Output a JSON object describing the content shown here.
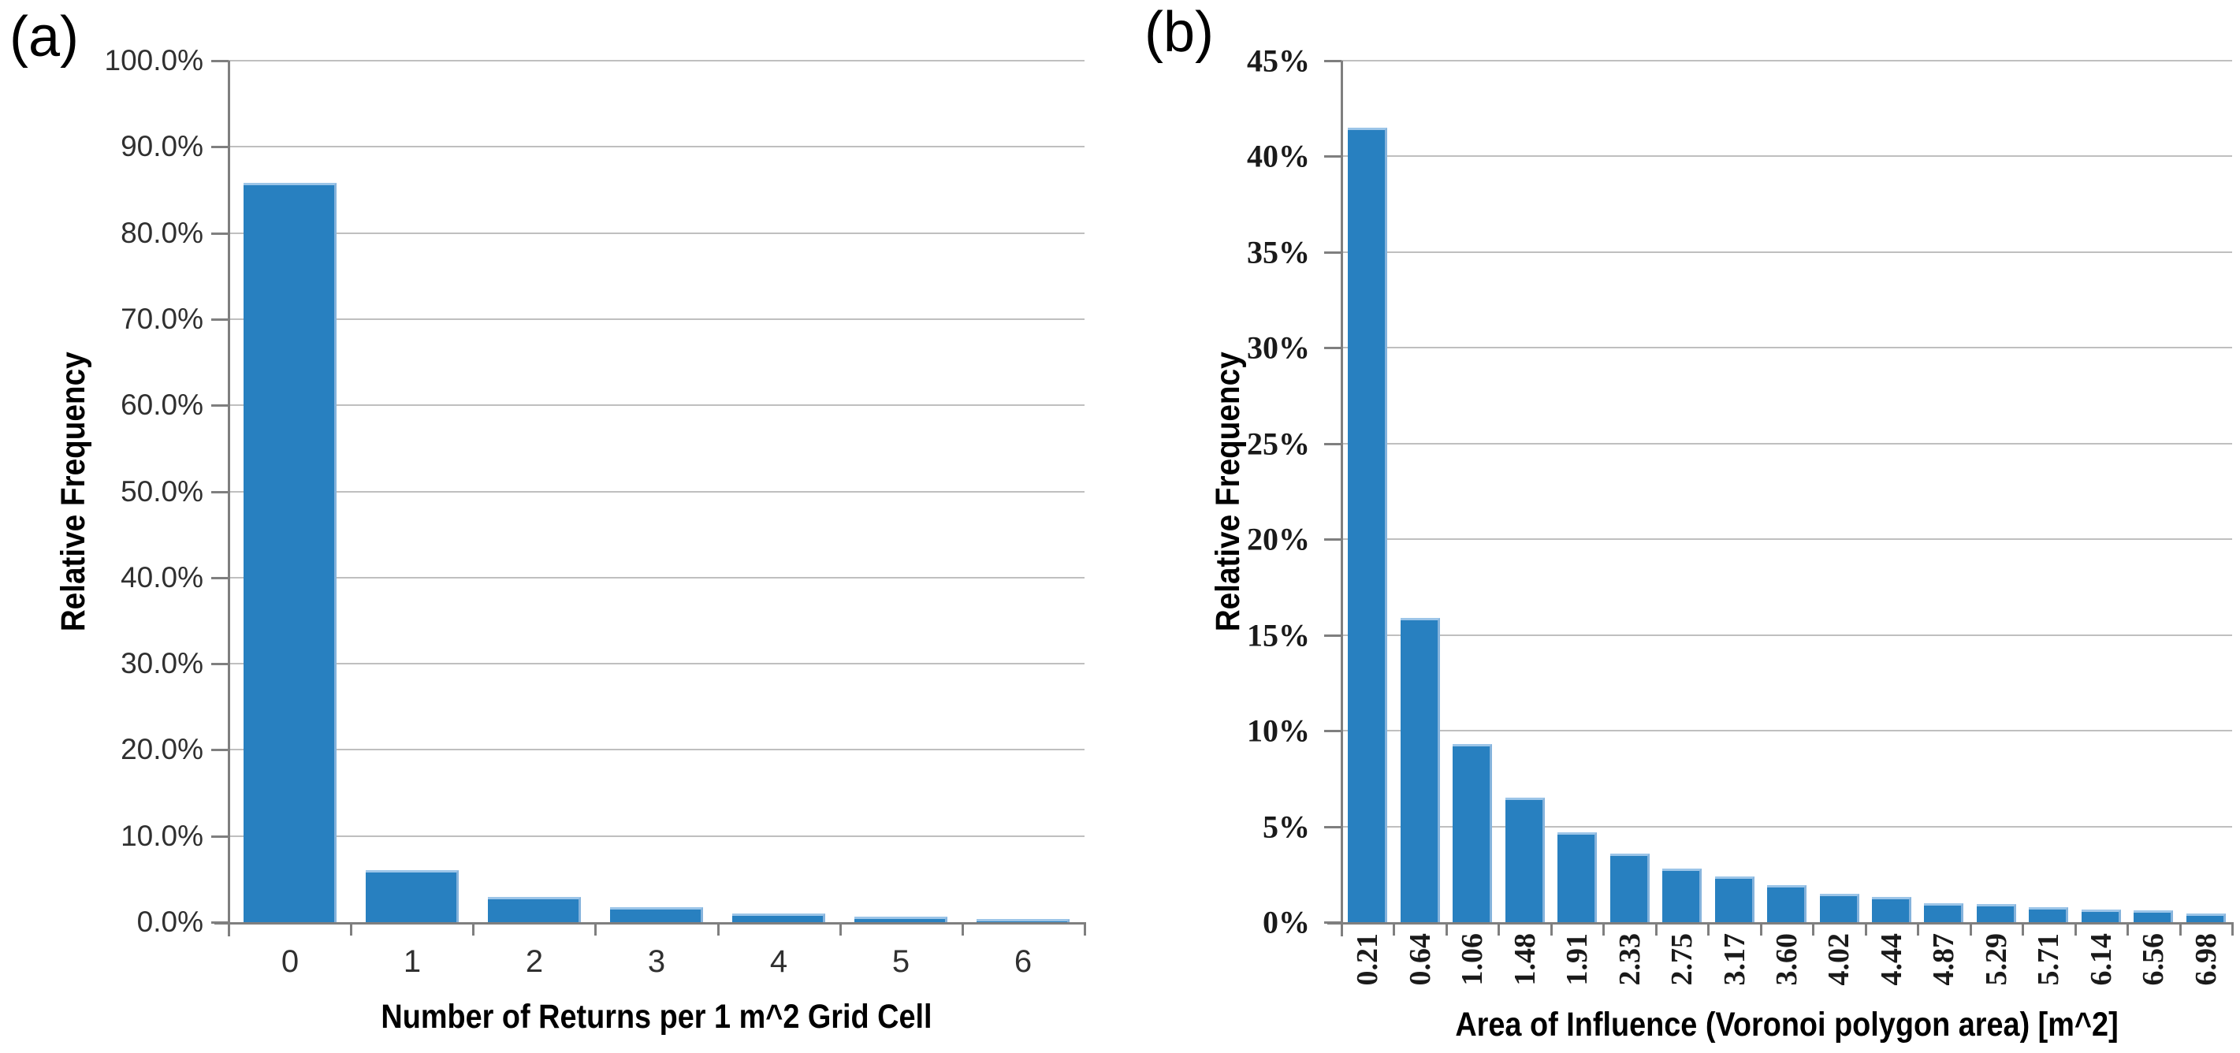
{
  "panels": [
    {
      "label": "(a)"
    },
    {
      "label": "(b)"
    }
  ],
  "chart_data": [
    {
      "type": "bar",
      "title": "",
      "xlabel": "Number of Returns per 1 m^2 Grid Cell",
      "ylabel": "Relative Frequency",
      "categories": [
        "0",
        "1",
        "2",
        "3",
        "4",
        "5",
        "6"
      ],
      "values": [
        85.8,
        6.0,
        2.9,
        1.7,
        1.0,
        0.6,
        0.3
      ],
      "ylim": [
        0,
        100
      ],
      "ytick_step": 10,
      "ytick_labels": [
        "0.0%",
        "10.0%",
        "20.0%",
        "30.0%",
        "40.0%",
        "50.0%",
        "60.0%",
        "70.0%",
        "80.0%",
        "90.0%",
        "100.0%"
      ],
      "grid": true,
      "legend": null,
      "x_tick_rotation": 0
    },
    {
      "type": "bar",
      "title": "",
      "xlabel": "Area of Influence (Voronoi polygon area) [m^2]",
      "ylabel": "Relative Frequency",
      "categories": [
        "0.21",
        "0.64",
        "1.06",
        "1.48",
        "1.91",
        "2.33",
        "2.75",
        "3.17",
        "3.60",
        "4.02",
        "4.44",
        "4.87",
        "5.29",
        "5.71",
        "6.14",
        "6.56",
        "6.98"
      ],
      "values": [
        41.5,
        15.9,
        9.3,
        6.5,
        4.7,
        3.6,
        2.8,
        2.4,
        1.95,
        1.5,
        1.3,
        1.0,
        0.95,
        0.8,
        0.65,
        0.6,
        0.45
      ],
      "ylim": [
        0,
        45
      ],
      "ytick_step": 5,
      "ytick_labels": [
        "0%",
        "5%",
        "10%",
        "15%",
        "20%",
        "25%",
        "30%",
        "35%",
        "40%",
        "45%"
      ],
      "grid": true,
      "legend": null,
      "x_tick_rotation": 90
    }
  ],
  "colors": {
    "bar_fill": "#2880C0",
    "bar_edge_top": "#9CC5E8",
    "bar_edge_right": "#85B3DC",
    "gridline": "#BFBFBF",
    "axis": "#7F7F7F",
    "tick_text": "#303030"
  }
}
